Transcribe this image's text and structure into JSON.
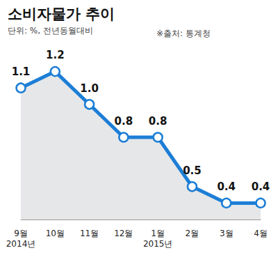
{
  "chart_data": {
    "type": "line",
    "title": "소비자물가 추이",
    "subtitle": "단위: %, 전년동월대비",
    "source": "※출처: 통계청",
    "categories": [
      "9월",
      "10월",
      "11월",
      "12월",
      "1월",
      "2월",
      "3월",
      "4월"
    ],
    "values": [
      1.1,
      1.2,
      1.0,
      0.8,
      0.8,
      0.5,
      0.4,
      0.4
    ],
    "value_labels": [
      "1.1",
      "1.2",
      "1.0",
      "0.8",
      "0.8",
      "0.5",
      "0.4",
      "0.4"
    ],
    "annotations": [
      {
        "category": "9월",
        "text": "2014년"
      },
      {
        "category": "1월",
        "text": "2015년"
      }
    ],
    "color": "#1c7ed6",
    "ylim": [
      0.3,
      1.3
    ],
    "grid": false,
    "data_labels": true,
    "tick_labels": "x",
    "marker": "circle"
  }
}
